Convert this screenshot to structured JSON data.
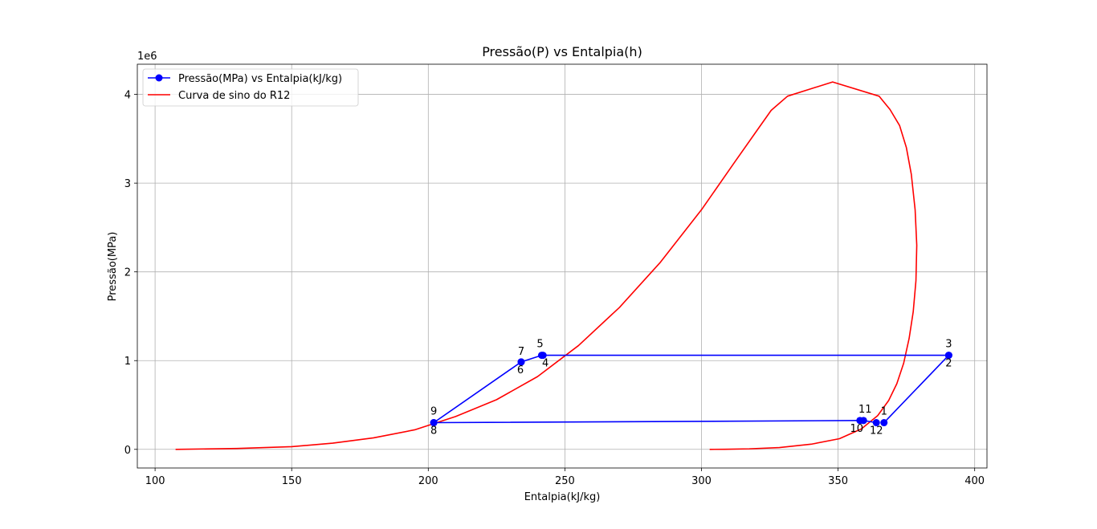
{
  "chart_data": {
    "type": "line",
    "title": "Pressão(P) vs Entalpia(h)",
    "xlabel": "Entalpia(kJ/kg)",
    "ylabel": "Pressão(MPa)",
    "y_offset_text": "1e6",
    "xlim": [
      93.5,
      404.5
    ],
    "ylim": [
      -210000,
      4340000
    ],
    "x_ticks": [
      100,
      150,
      200,
      250,
      300,
      350,
      400
    ],
    "y_ticks": [
      0,
      1000000,
      2000000,
      3000000,
      4000000
    ],
    "y_tick_labels": [
      "0",
      "1",
      "2",
      "3",
      "4"
    ],
    "grid": true,
    "legend_position": "upper left",
    "series": [
      {
        "name": "Pressão(MPa) vs Entalpia(kJ/kg)",
        "color": "#0000ff",
        "marker": "circle",
        "x": [
          366.8,
          390.5,
          390.5,
          242.0,
          241.5,
          234.0,
          234.0,
          202.0,
          202.0,
          358.0,
          359.3,
          364.0
        ],
        "y": [
          301000,
          1060000,
          1060000,
          1060000,
          1060000,
          985000,
          985000,
          301000,
          301000,
          325000,
          325000,
          301000
        ],
        "labels": [
          "1",
          "2",
          "3",
          "4",
          "5",
          "6",
          "7",
          "8",
          "9",
          "10",
          "11",
          "12"
        ]
      },
      {
        "name": "Curva de sino do R12",
        "color": "#ff0000",
        "x": [
          107.5,
          130,
          150,
          165,
          180,
          195,
          210,
          225,
          240,
          255,
          270,
          285,
          300,
          312,
          320,
          325.5,
          331.5,
          348,
          365,
          369,
          372.5,
          375,
          376.8,
          378.2,
          378.8,
          378.5,
          377.5,
          376,
          374,
          371.5,
          368.5,
          364.5,
          358.5,
          350.5,
          340.5,
          328.5,
          317.5,
          308.5,
          303
        ],
        "y": [
          0,
          10000,
          30000,
          70000,
          130000,
          220000,
          370000,
          560000,
          820000,
          1170000,
          1600000,
          2110000,
          2700000,
          3230000,
          3580000,
          3820000,
          3980000,
          4140000,
          3980000,
          3830000,
          3650000,
          3400000,
          3100000,
          2700000,
          2300000,
          1900000,
          1550000,
          1250000,
          970000,
          740000,
          550000,
          380000,
          230000,
          120000,
          60000,
          20000,
          6000,
          1000,
          0
        ]
      }
    ]
  }
}
